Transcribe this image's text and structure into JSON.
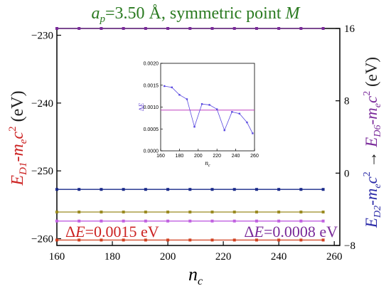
{
  "chart_data": [
    {
      "type": "line",
      "title": {
        "var": "a",
        "sub": "p",
        "rest": "=3.50 Å, symmetric point ",
        "pt": "M"
      },
      "xlabel": {
        "var": "n",
        "sub": "c"
      },
      "xlim": [
        160,
        262
      ],
      "xticks": [
        160,
        180,
        200,
        220,
        240,
        260
      ],
      "left_axis": {
        "ylim": [
          -261,
          -229
        ],
        "ticks": [
          -260,
          -250,
          -240,
          -230
        ],
        "tick_labels": [
          "−260",
          "−250",
          "−240",
          "−230"
        ],
        "label_color": "#cc2222"
      },
      "right_axis": {
        "ylim": [
          -8,
          16
        ],
        "ticks": [
          -8,
          0,
          8,
          16
        ],
        "tick_labels": [
          "−8",
          "0",
          "8",
          "16"
        ],
        "label_color_top": "#7a2a9a",
        "label_color_bottom": "#2a2aa8"
      },
      "x": [
        160,
        168,
        176,
        184,
        192,
        200,
        208,
        216,
        224,
        232,
        240,
        248,
        256
      ],
      "series": [
        {
          "axis": "left",
          "color": "#d04020",
          "y": [
            -260.2,
            -260.2,
            -260.2,
            -260.2,
            -260.2,
            -260.2,
            -260.2,
            -260.2,
            -260.2,
            -260.2,
            -260.2,
            -260.2,
            -260.2
          ]
        },
        {
          "axis": "right",
          "color": "#7a2a9a",
          "y": [
            16,
            16,
            16,
            16,
            16,
            16,
            16,
            16,
            16,
            16,
            16,
            16,
            16
          ]
        },
        {
          "axis": "right",
          "color": "#1a2a8a",
          "y": [
            -1.8,
            -1.8,
            -1.8,
            -1.8,
            -1.8,
            -1.8,
            -1.8,
            -1.8,
            -1.8,
            -1.8,
            -1.8,
            -1.8,
            -1.8
          ]
        },
        {
          "axis": "right",
          "color": "#9a8a20",
          "y": [
            -4.3,
            -4.3,
            -4.3,
            -4.3,
            -4.3,
            -4.3,
            -4.3,
            -4.3,
            -4.3,
            -4.3,
            -4.3,
            -4.3,
            -4.3
          ]
        },
        {
          "axis": "right",
          "color": "#c060e0",
          "y": [
            -5.3,
            -5.3,
            -5.3,
            -5.3,
            -5.3,
            -5.3,
            -5.3,
            -5.3,
            -5.3,
            -5.3,
            -5.3,
            -5.3,
            -5.3
          ]
        }
      ],
      "annotations": [
        {
          "text": "=0.0015 eV",
          "sym": "Δ",
          "var": "E",
          "color": "#cc2222",
          "position": "bottom-left"
        },
        {
          "text": "=0.0008 eV",
          "sym": "Δ",
          "var": "E",
          "color": "#7a2a9a",
          "position": "bottom-right"
        }
      ],
      "left_label": {
        "E": "E",
        "sub": "D1",
        "rest": "-m",
        "sub2": "e",
        "rest2": "c",
        "sup": "2",
        "unit": " (eV)"
      },
      "right_label": {
        "part1": "E",
        "sub1": "D2",
        "mid1": "-m",
        "sub1b": "e",
        "c1": "c",
        "sup1": "2",
        "arrow": " → ",
        "part2": "E",
        "sub2": "D6",
        "mid2": "-m",
        "sub2b": "e",
        "c2": "c",
        "sup2": "2",
        "unit": " (eV)"
      }
    },
    {
      "type": "line",
      "inset": true,
      "xlim": [
        160,
        260
      ],
      "xticks": [
        160,
        180,
        200,
        220,
        240,
        260
      ],
      "ylim": [
        0,
        0.002
      ],
      "yticks": [
        "0.0000",
        "0.0005",
        "0.0010",
        "0.0015",
        "0.0020"
      ],
      "ylabel": {
        "sym": "Δ",
        "var": "E"
      },
      "xlabel": {
        "var": "n",
        "sub": "c"
      },
      "x": [
        164,
        172,
        180,
        188,
        196,
        204,
        212,
        220,
        228,
        236,
        244,
        252,
        258
      ],
      "y": [
        0.00148,
        0.00145,
        0.00128,
        0.00118,
        0.00055,
        0.00107,
        0.00105,
        0.00095,
        0.00047,
        0.00089,
        0.00085,
        0.00065,
        0.0004
      ],
      "reference_line": 0.00093,
      "line_color": "#5a4ae0",
      "ref_color": "#c040c0"
    }
  ]
}
